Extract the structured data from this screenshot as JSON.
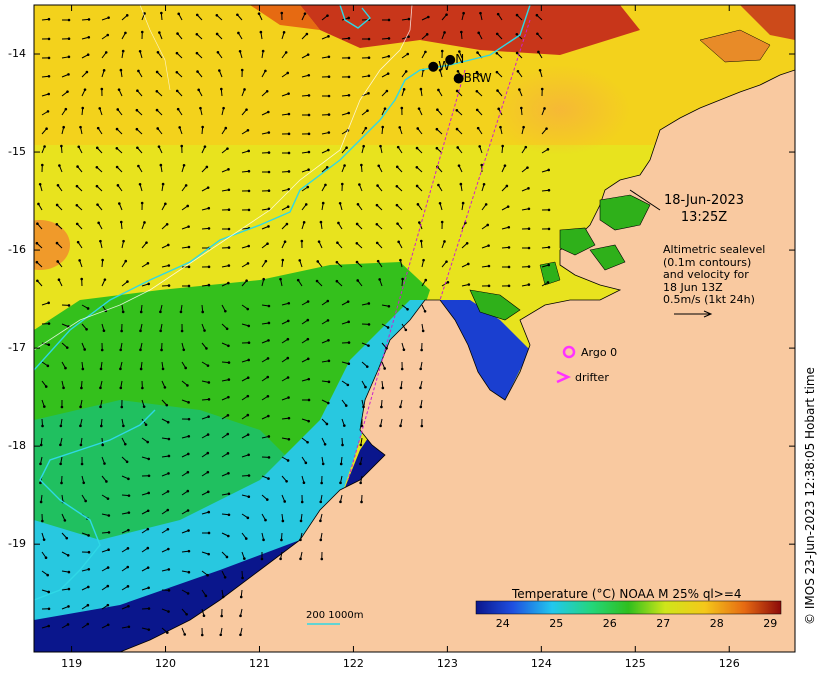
{
  "map": {
    "lon_ticks": [
      "119",
      "120",
      "121",
      "122",
      "123",
      "124",
      "125",
      "126"
    ],
    "lat_ticks": [
      "-14",
      "-15",
      "-16",
      "-17",
      "-18",
      "-19"
    ],
    "lon_range": [
      118.6,
      126.7
    ],
    "lat_range": [
      -20.1,
      -13.5
    ]
  },
  "stations": [
    {
      "label": "W",
      "lon": 122.85,
      "lat": -14.13
    },
    {
      "label": "N",
      "lon": 123.03,
      "lat": -14.06
    },
    {
      "label": "BRW",
      "lon": 123.12,
      "lat": -14.25
    }
  ],
  "overlay": {
    "date_line1": "18-Jun-2023",
    "date_line2": "13:25Z",
    "info_lines": [
      "Altimetric sealevel",
      "(0.1m contours)",
      "and velocity for",
      "18 Jun 13Z",
      "0.5m/s (1kt 24h)"
    ],
    "argo_label": "Argo 0",
    "drifter_label": "drifter",
    "scale_label": "200  1000m",
    "credit": "© IMOS 23-Jun-2023 12:38:05 Hobart time"
  },
  "colorbar": {
    "title": "Temperature (°C) NOAA  M 25% ql>=4",
    "ticks": [
      "24",
      "25",
      "26",
      "27",
      "28",
      "29"
    ],
    "range": [
      23.5,
      29.2
    ]
  },
  "colors": {
    "land": "#f9c9a0",
    "deep_water": "#0a168c",
    "cyan_contour": "#2fd8e6",
    "track": "#cc22cc",
    "argo": "#ff33ff"
  }
}
